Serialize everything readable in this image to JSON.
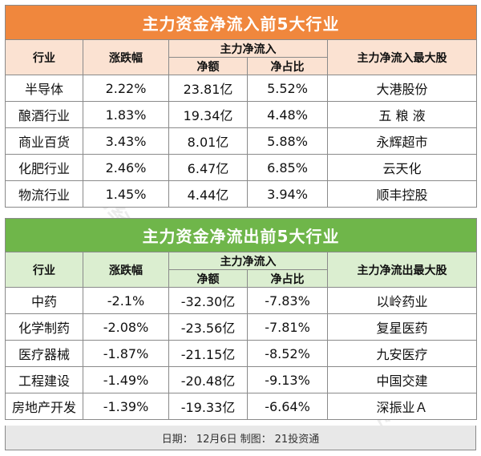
{
  "inflow": {
    "title": "主力资金净流入前5大行业",
    "headers": {
      "industry": "行业",
      "change": "涨跌幅",
      "net_group": "主力净流入",
      "net_amount": "净额",
      "net_ratio": "净占比",
      "top_stock": "主力净流入最大股"
    },
    "rows": [
      {
        "industry": "半导体",
        "change": "2.22%",
        "amount": "23.81亿",
        "ratio": "5.52%",
        "stock": "大港股份"
      },
      {
        "industry": "酿酒行业",
        "change": "1.83%",
        "amount": "19.34亿",
        "ratio": "4.48%",
        "stock": "五 粮 液"
      },
      {
        "industry": "商业百货",
        "change": "3.43%",
        "amount": "8.01亿",
        "ratio": "5.88%",
        "stock": "永辉超市"
      },
      {
        "industry": "化肥行业",
        "change": "2.46%",
        "amount": "6.47亿",
        "ratio": "6.85%",
        "stock": "云天化"
      },
      {
        "industry": "物流行业",
        "change": "1.45%",
        "amount": "4.44亿",
        "ratio": "3.94%",
        "stock": "顺丰控股"
      }
    ]
  },
  "outflow": {
    "title": "主力资金净流出前5大行业",
    "headers": {
      "industry": "行业",
      "change": "涨跌幅",
      "net_group": "主力净流入",
      "net_amount": "净额",
      "net_ratio": "净占比",
      "top_stock": "主力净流出最大股"
    },
    "rows": [
      {
        "industry": "中药",
        "change": "-2.1%",
        "amount": "-32.30亿",
        "ratio": "-7.83%",
        "stock": "以岭药业"
      },
      {
        "industry": "化学制药",
        "change": "-2.08%",
        "amount": "-23.56亿",
        "ratio": "-7.81%",
        "stock": "复星医药"
      },
      {
        "industry": "医疗器械",
        "change": "-1.87%",
        "amount": "-21.15亿",
        "ratio": "-8.52%",
        "stock": "九安医疗"
      },
      {
        "industry": "工程建设",
        "change": "-1.49%",
        "amount": "-20.48亿",
        "ratio": "-9.13%",
        "stock": "中国交建"
      },
      {
        "industry": "房地产开发",
        "change": "-1.39%",
        "amount": "-19.33亿",
        "ratio": "-6.64%",
        "stock": "深振业Ａ"
      }
    ]
  },
  "footer": {
    "date_label": "日期：",
    "date": "12月6日",
    "maker_label": "制图：",
    "maker": "21投资通"
  },
  "watermark": "21财经",
  "colors": {
    "inflow_title_bg": "#f0873d",
    "inflow_header_bg": "#fbe2d2",
    "outflow_title_bg": "#6fb64a",
    "outflow_header_bg": "#dbeed0",
    "footer_bg": "#e8e8e8"
  }
}
